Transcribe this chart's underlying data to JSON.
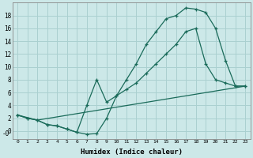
{
  "xlabel": "Humidex (Indice chaleur)",
  "background_color": "#cce8e8",
  "grid_color": "#aad0d0",
  "line_color": "#1a6b5a",
  "xlim": [
    -0.5,
    23.5
  ],
  "ylim": [
    -1.2,
    20
  ],
  "yticks": [
    0,
    2,
    4,
    6,
    8,
    10,
    12,
    14,
    16,
    18
  ],
  "xticks": [
    0,
    1,
    2,
    3,
    4,
    5,
    6,
    7,
    8,
    9,
    10,
    11,
    12,
    13,
    14,
    15,
    16,
    17,
    18,
    19,
    20,
    21,
    22,
    23
  ],
  "line1_x": [
    0,
    1,
    2,
    3,
    4,
    5,
    6,
    7,
    8,
    9,
    10,
    11,
    12,
    13,
    14,
    15,
    16,
    17,
    18,
    19,
    20,
    21,
    22,
    23
  ],
  "line1_y": [
    2.5,
    2.0,
    1.7,
    1.0,
    0.8,
    0.3,
    -0.2,
    -0.5,
    -0.4,
    2.0,
    5.5,
    8.0,
    10.5,
    13.5,
    15.5,
    17.5,
    18.0,
    19.2,
    19.0,
    18.5,
    16.0,
    11.0,
    7.0,
    7.0
  ],
  "line2_x": [
    0,
    1,
    2,
    3,
    4,
    5,
    6,
    7,
    8,
    9,
    10,
    11,
    12,
    13,
    14,
    15,
    16,
    17,
    18,
    19,
    20,
    21,
    22,
    23
  ],
  "line2_y": [
    2.5,
    2.0,
    1.7,
    1.0,
    0.8,
    0.3,
    -0.2,
    4.0,
    8.0,
    4.5,
    5.5,
    6.5,
    7.5,
    9.0,
    10.5,
    12.0,
    13.5,
    15.5,
    16.0,
    10.5,
    8.0,
    7.5,
    7.0,
    7.0
  ],
  "line3_x": [
    0,
    2,
    23
  ],
  "line3_y": [
    2.5,
    1.7,
    7.0
  ]
}
